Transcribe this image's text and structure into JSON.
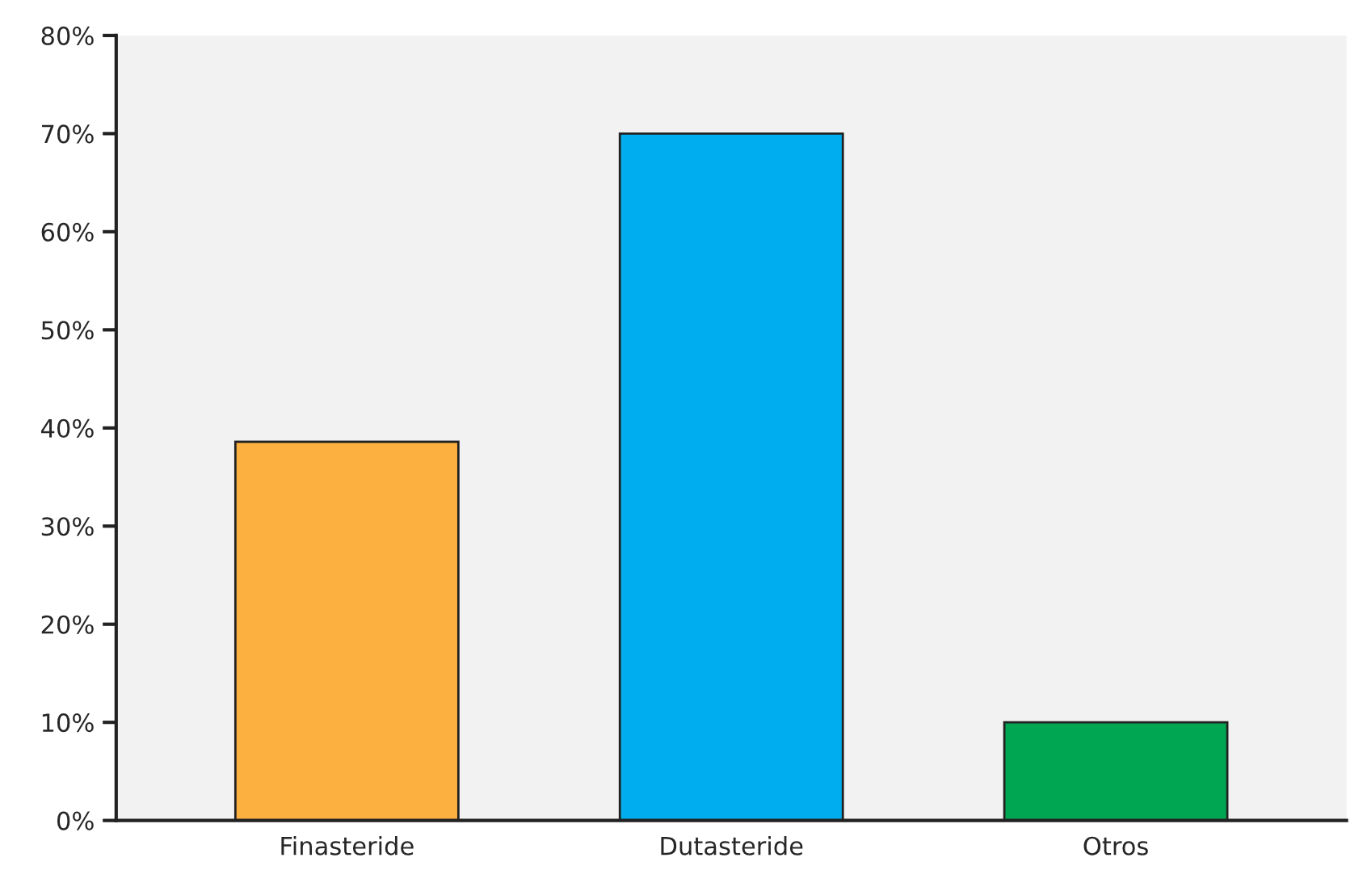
{
  "chart_data": {
    "type": "bar",
    "categories": [
      "Finasteride",
      "Dutasteride",
      "Otros"
    ],
    "values": [
      38.6,
      70,
      10
    ],
    "colors": [
      "#fbb040",
      "#00aeef",
      "#00a651"
    ],
    "ylim": [
      0,
      80
    ],
    "yticks": [
      {
        "value": 0,
        "label": "0%"
      },
      {
        "value": 10,
        "label": "10%"
      },
      {
        "value": 20,
        "label": "20%"
      },
      {
        "value": 30,
        "label": "30%"
      },
      {
        "value": 40,
        "label": "40%"
      },
      {
        "value": 50,
        "label": "50%"
      },
      {
        "value": 60,
        "label": "60%"
      },
      {
        "value": 70,
        "label": "70%"
      },
      {
        "value": 80,
        "label": "80%"
      }
    ],
    "grid": false,
    "legend": false
  }
}
